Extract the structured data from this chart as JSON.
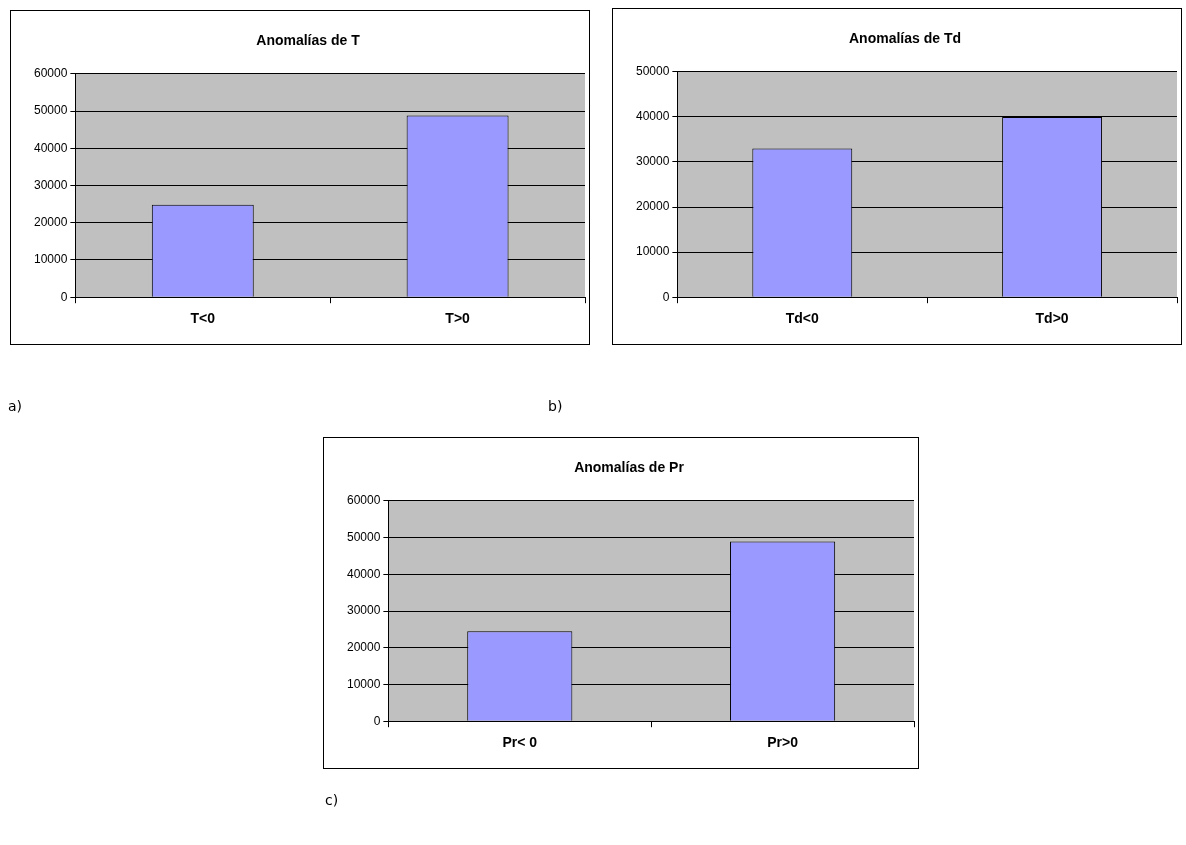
{
  "chart_data": [
    {
      "type": "bar",
      "title": "Anomalías de T",
      "categories": [
        "T<0",
        "T>0"
      ],
      "values": [
        24800,
        48800
      ],
      "color": "#9999ff",
      "ylim": [
        0,
        60000
      ],
      "yticks": [
        0,
        10000,
        20000,
        30000,
        40000,
        50000,
        60000
      ],
      "grid": "y",
      "legend": false,
      "annotations": [
        "a)"
      ]
    },
    {
      "type": "bar",
      "title": "Anomalías de Td",
      "categories": [
        "Td<0",
        "Td>0"
      ],
      "values": [
        33000,
        40000
      ],
      "color": "#9999ff",
      "ylim": [
        0,
        50000
      ],
      "yticks": [
        0,
        10000,
        20000,
        30000,
        40000,
        50000
      ],
      "grid": "y",
      "legend": false,
      "annotations": [
        "b)"
      ]
    },
    {
      "type": "bar",
      "title": "Anomalías de Pr",
      "categories": [
        "Pr< 0",
        "Pr>0"
      ],
      "values": [
        24500,
        48900
      ],
      "color": "#9999ff",
      "ylim": [
        0,
        60000
      ],
      "yticks": [
        0,
        10000,
        20000,
        30000,
        40000,
        50000,
        60000
      ],
      "grid": "y",
      "legend": false,
      "annotations": [
        "c)"
      ]
    }
  ]
}
